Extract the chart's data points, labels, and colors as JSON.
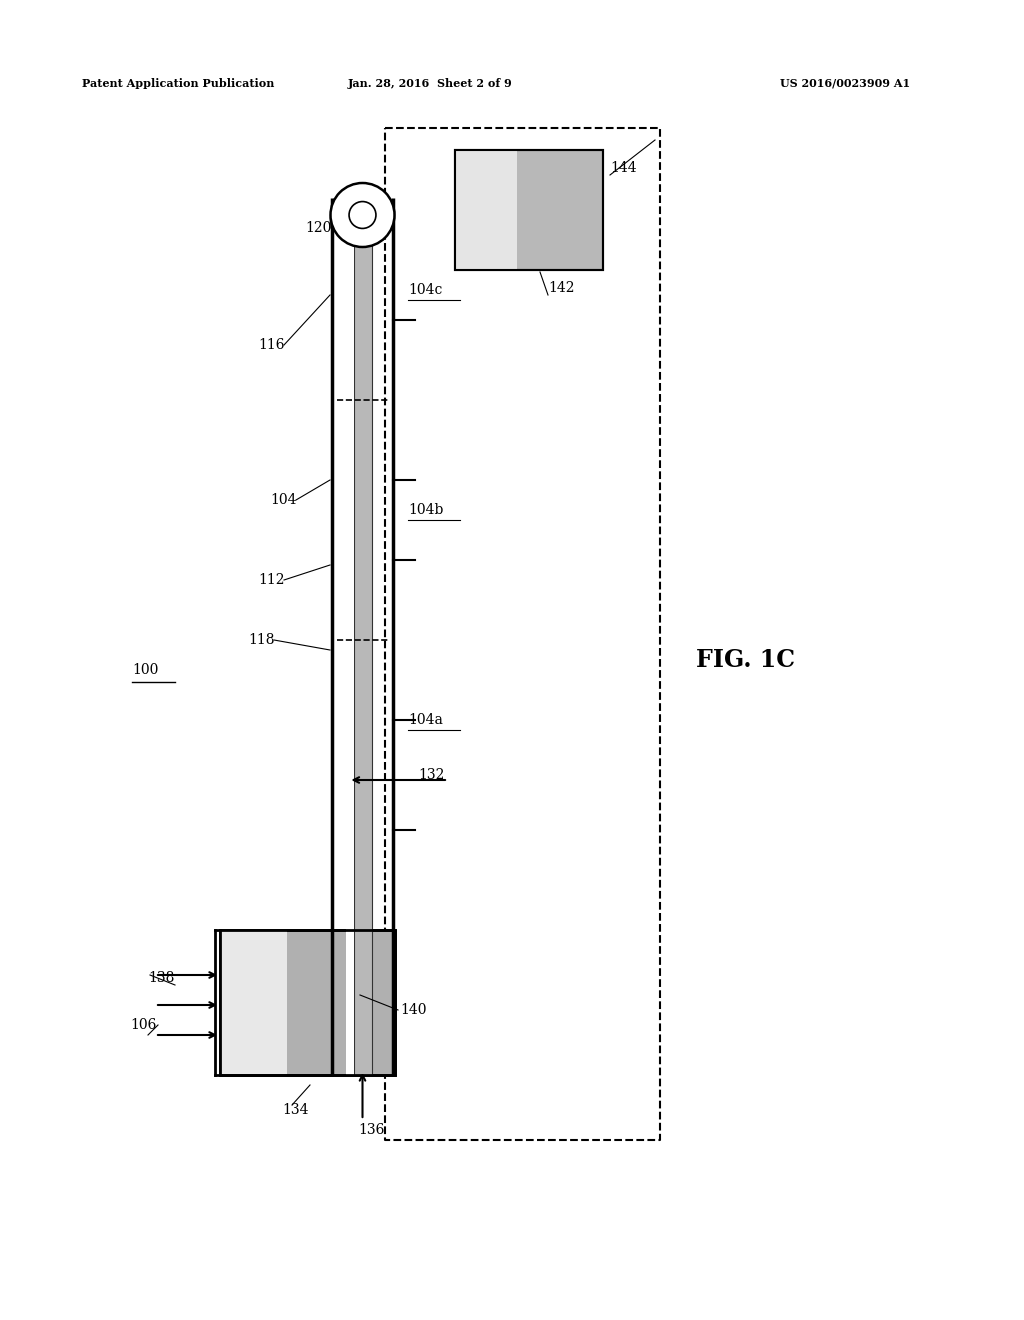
{
  "bg_color": "#ffffff",
  "header_left": "Patent Application Publication",
  "header_mid": "Jan. 28, 2016  Sheet 2 of 9",
  "header_right": "US 2016/0023909 A1",
  "fig_label": "FIG. 1C"
}
